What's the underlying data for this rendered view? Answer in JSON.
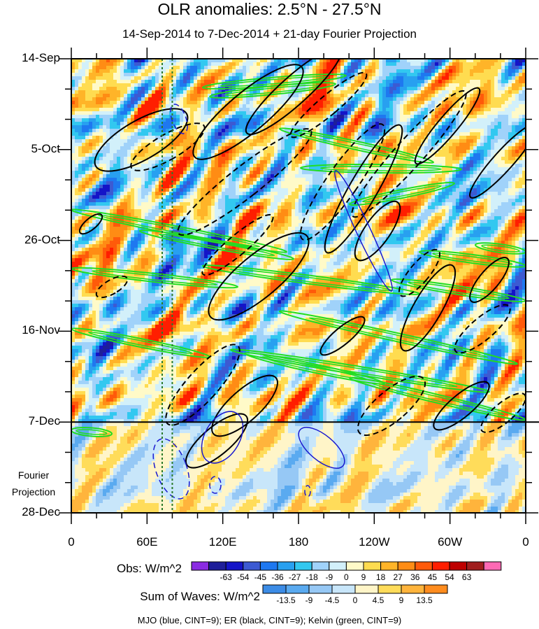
{
  "title": "OLR anomalies: 2.5°N - 27.5°N",
  "subtitle": "14-Sep-2014 to 7-Dec-2014 + 21-day Fourier Projection",
  "forecast_label_line1": "Fourier",
  "forecast_label_line2": "Projection",
  "footnote": "MJO (blue, CINT=9); ER (black, CINT=9); Kelvin (green, CINT=9)",
  "colors": {
    "mjo": "#1a1ad0",
    "er": "#000000",
    "kelvin": "#22dd22",
    "reference_line": "#2a7a2a"
  },
  "obs_colorbar": {
    "title": "Obs: W/m^2",
    "labels": [
      "-63",
      "-54",
      "-45",
      "-36",
      "-27",
      "-18",
      "-9",
      "0",
      "9",
      "18",
      "27",
      "36",
      "45",
      "54",
      "63"
    ],
    "colors": [
      "#8a2be2",
      "#1e1e9a",
      "#1414c8",
      "#3c5ad2",
      "#1e78f0",
      "#28a0f0",
      "#32c8f0",
      "#a0d2fa",
      "#d2f0fa",
      "#fffac8",
      "#ffdc50",
      "#ffb428",
      "#ff8c14",
      "#ff5a0a",
      "#ff1e00",
      "#be0000",
      "#a01e1e",
      "#ff69b4"
    ]
  },
  "waves_colorbar": {
    "title": "Sum of Waves: W/m^2",
    "labels": [
      "-13.5",
      "-9",
      "-4.5",
      "0",
      "4.5",
      "9",
      "13.5"
    ],
    "colors": [
      "#3c8ce6",
      "#5aaaf0",
      "#96c8f5",
      "#c8e6fa",
      "#fff5c8",
      "#ffdc5a",
      "#ffb43c",
      "#ff8c1e"
    ]
  },
  "chart_data": {
    "type": "heatmap",
    "title": "OLR anomalies: 2.5°N - 27.5°N",
    "subtitle": "14-Sep-2014 to 7-Dec-2014 + 21-day Fourier Projection",
    "xlabel": "",
    "ylabel": "",
    "x_ticks": [
      "0",
      "60E",
      "120E",
      "180",
      "120W",
      "60W",
      "0"
    ],
    "x_tick_longitudes": [
      0,
      60,
      120,
      180,
      240,
      300,
      360
    ],
    "y_ticks": [
      "14-Sep",
      "5-Oct",
      "26-Oct",
      "16-Nov",
      "7-Dec",
      "28-Dec"
    ],
    "y_tick_days": [
      0,
      21,
      42,
      63,
      84,
      105
    ],
    "xlim": [
      0,
      360
    ],
    "ylim_days": [
      0,
      105
    ],
    "observation_end_day": 84,
    "reference_longitudes": [
      72,
      80
    ],
    "contour_interval": 9,
    "units": "W/m^2"
  }
}
